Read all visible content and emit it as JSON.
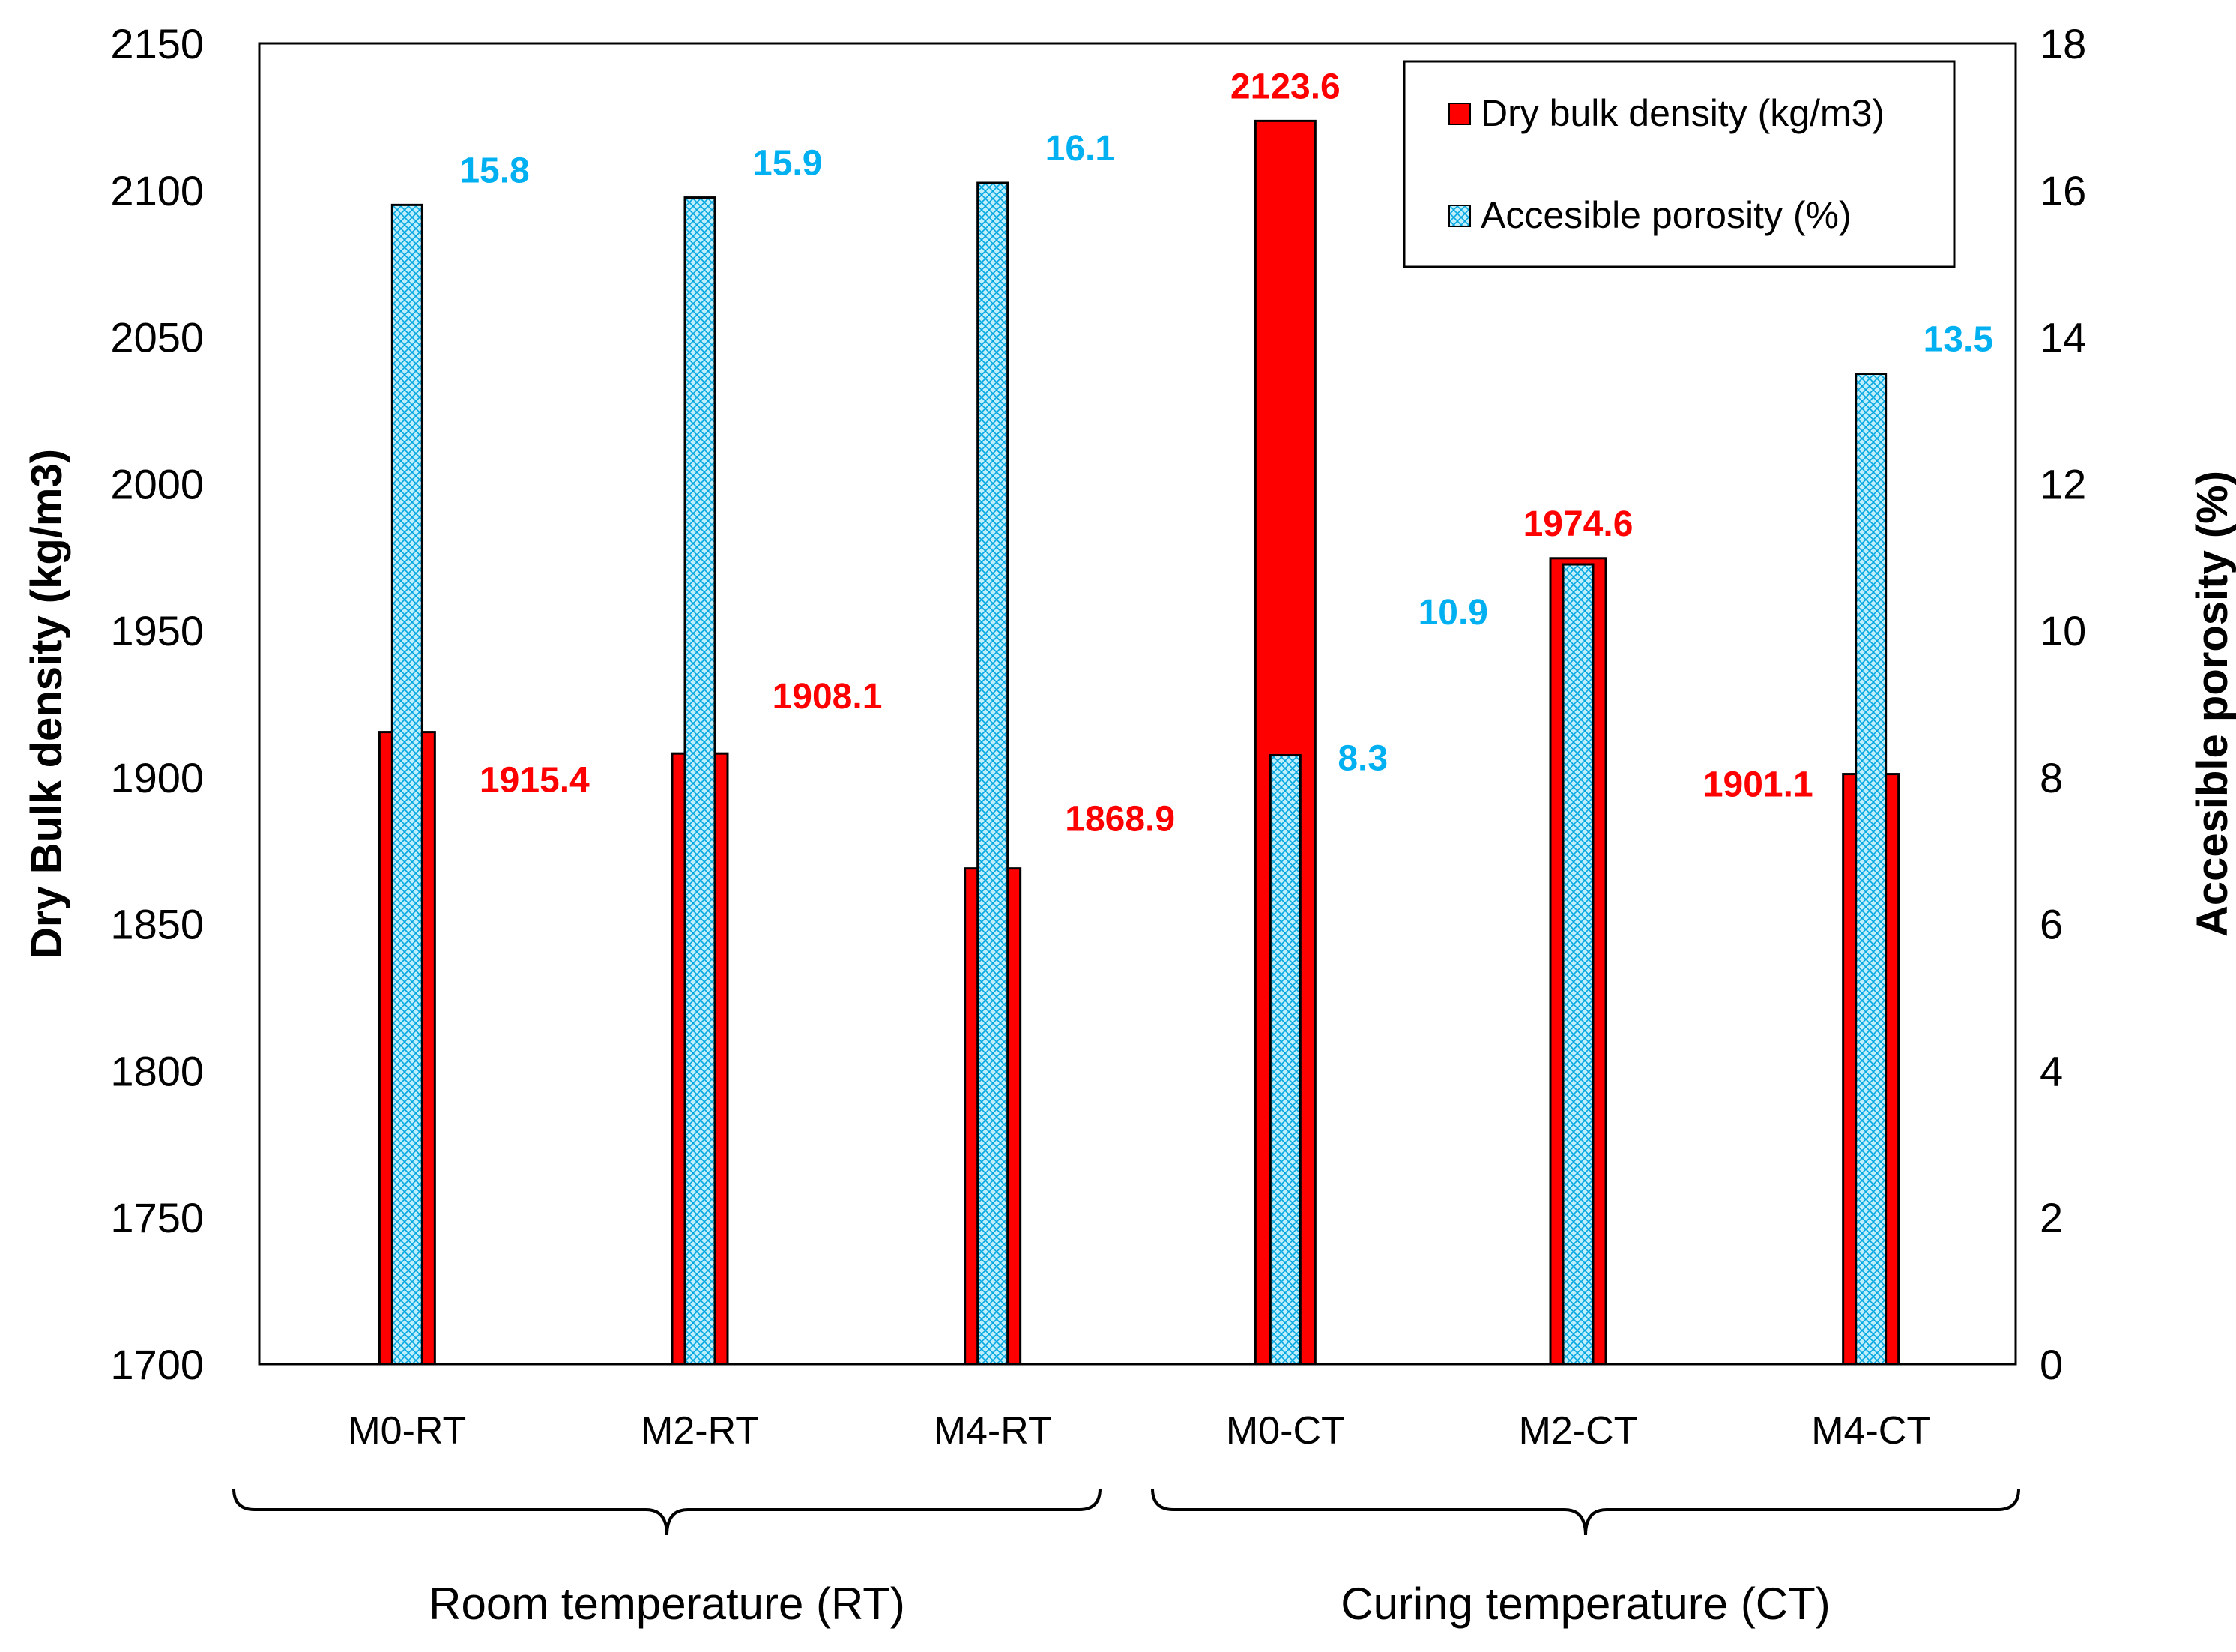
{
  "chart_data": {
    "type": "bar",
    "categories": [
      "M0-RT",
      "M2-RT",
      "M4-RT",
      "M0-CT",
      "M2-CT",
      "M4-CT"
    ],
    "series": [
      {
        "name": "Dry bulk density (kg/m3)",
        "axis": "left",
        "color": "#ff0000",
        "values": [
          1915.4,
          1908.1,
          1868.9,
          2123.6,
          1974.6,
          1901.1
        ],
        "labels": [
          "1915.4",
          "1908.1",
          "1868.9",
          "2123.6",
          "1974.6",
          "1901.1"
        ]
      },
      {
        "name": "Accesible porosity (%)",
        "axis": "right",
        "color": "#00b0f0",
        "values": [
          15.8,
          15.9,
          16.1,
          8.3,
          10.9,
          13.5
        ],
        "labels": [
          "15.8",
          "15.9",
          "16.1",
          "8.3",
          "10.9",
          "13.5"
        ]
      }
    ],
    "ylabel": "Dry Bulk density (kg/m3)",
    "y2label": "Accesible porosity (%)",
    "ylim": [
      1700,
      2150
    ],
    "y2lim": [
      0,
      18
    ],
    "yticks": [
      "1700",
      "1750",
      "1800",
      "1850",
      "1900",
      "1950",
      "2000",
      "2050",
      "2100",
      "2150"
    ],
    "y2ticks": [
      "0",
      "2",
      "4",
      "6",
      "8",
      "10",
      "12",
      "14",
      "16",
      "18"
    ],
    "legend_position": "top-right",
    "grid": false,
    "groups": [
      {
        "label": "Room temperature (RT)",
        "categories": [
          "M0-RT",
          "M2-RT",
          "M4-RT"
        ]
      },
      {
        "label": "Curing temperature (CT)",
        "categories": [
          "M0-CT",
          "M2-CT",
          "M4-CT"
        ]
      }
    ]
  }
}
